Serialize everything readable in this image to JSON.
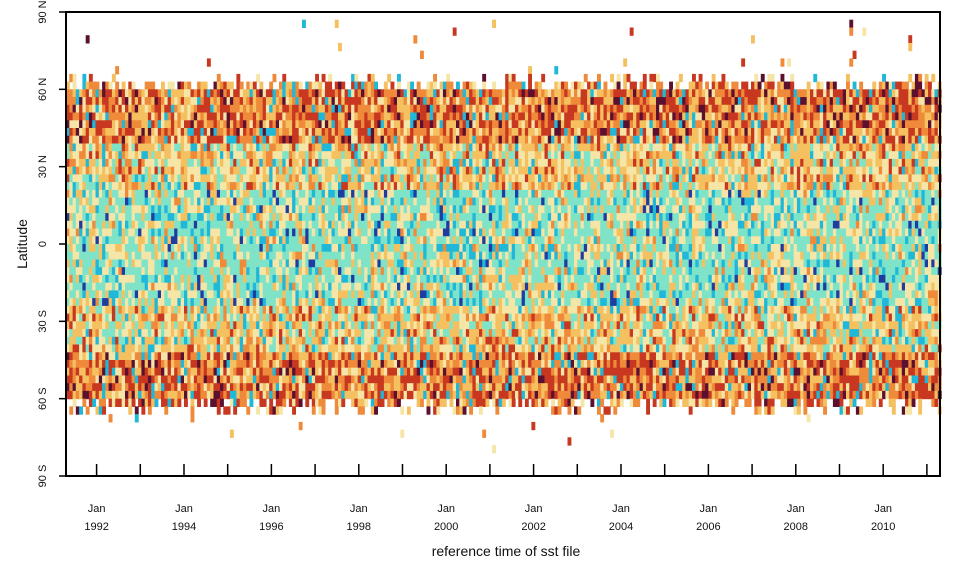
{
  "chart_data": {
    "type": "heatmap",
    "title": "",
    "xlabel": "reference time of sst file",
    "ylabel": "Latitude",
    "x_ticks": [
      {
        "line1": "Jan",
        "line2": "1992",
        "year": 1992
      },
      {
        "line1": "Jan",
        "line2": "1994",
        "year": 1994
      },
      {
        "line1": "Jan",
        "line2": "1996",
        "year": 1996
      },
      {
        "line1": "Jan",
        "line2": "1998",
        "year": 1998
      },
      {
        "line1": "Jan",
        "line2": "2000",
        "year": 2000
      },
      {
        "line1": "Jan",
        "line2": "2002",
        "year": 2002
      },
      {
        "line1": "Jan",
        "line2": "2004",
        "year": 2004
      },
      {
        "line1": "Jan",
        "line2": "2006",
        "year": 2006
      },
      {
        "line1": "Jan",
        "line2": "2008",
        "year": 2008
      },
      {
        "line1": "Jan",
        "line2": "2010",
        "year": 2010
      }
    ],
    "y_ticks": [
      {
        "label": "90 N",
        "lat": 90
      },
      {
        "label": "60 N",
        "lat": 60
      },
      {
        "label": "30 N",
        "lat": 30
      },
      {
        "label": "0",
        "lat": 0
      },
      {
        "label": "30 S",
        "lat": -30
      },
      {
        "label": "60 S",
        "lat": -60
      },
      {
        "label": "90 S",
        "lat": -90
      }
    ],
    "xlim": [
      1991.3,
      2011.3
    ],
    "ylim": [
      -90,
      90
    ],
    "grid": false,
    "legend": "none",
    "colors": {
      "very_low": "#1f3ca0",
      "low": "#20b8d8",
      "mid_low": "#7fe3c8",
      "mid": "#f5e6a8",
      "mid_high": "#f5c060",
      "high": "#ee8a3a",
      "very_high": "#c83820",
      "extreme": "#5c1030"
    },
    "data_coverage": {
      "north_edge_lat": 63,
      "south_edge_lat": -60
    }
  }
}
